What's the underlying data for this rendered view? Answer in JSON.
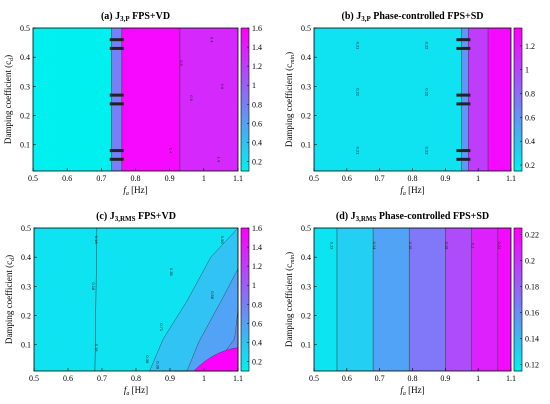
{
  "chart_data": [
    {
      "type": "heatmap",
      "panel": "(a)",
      "title": "J",
      "title_sub": "3,P",
      "title_rest": " FPS+VD",
      "xlabel": "f",
      "xlabel_sub": "a",
      "xlabel_unit": " [Hz]",
      "ylabel": "Damping coefficient (c",
      "ylabel_sub": "d",
      "ylabel_end": ")",
      "xlim": [
        0.5,
        1.1
      ],
      "ylim": [
        0.01,
        0.5
      ],
      "xticks": [
        "0.5",
        "0.6",
        "0.7",
        "0.8",
        "0.9",
        "1",
        "1.1"
      ],
      "yticks": [
        "0.1",
        "0.2",
        "0.3",
        "0.4",
        "0.5"
      ],
      "colorbar": {
        "min": 0.1,
        "max": 1.6,
        "ticks": [
          "0.2",
          "0.4",
          "0.6",
          "0.8",
          "1",
          "1.2",
          "1.4",
          "1.6"
        ]
      },
      "regions": [
        {
          "x": [
            0.5,
            0.73
          ],
          "value": 0.1
        },
        {
          "x": [
            0.73,
            0.76
          ],
          "value": 0.8
        },
        {
          "x": [
            0.76,
            0.93
          ],
          "value": 1.55
        },
        {
          "x": [
            0.93,
            1.1
          ],
          "value": 1.35
        }
      ],
      "contour_labels": [
        "0.4",
        "0.5",
        "0.6",
        "0.9",
        "1.4",
        "1.4"
      ]
    },
    {
      "type": "heatmap",
      "panel": "(b)",
      "title": "J",
      "title_sub": "3,P",
      "title_rest": " Phase-controlled FPS+SD",
      "xlabel": "f",
      "xlabel_sub": "a",
      "xlabel_unit": " [Hz]",
      "ylabel": "Damping coefficient (c",
      "ylabel_sub": "min",
      "ylabel_end": ")",
      "xlim": [
        0.5,
        1.1
      ],
      "ylim": [
        0.01,
        0.5
      ],
      "xticks": [
        "0.5",
        "0.6",
        "0.7",
        "0.8",
        "0.9",
        "1",
        "1.1"
      ],
      "yticks": [
        "0.1",
        "0.2",
        "0.3",
        "0.4",
        "0.5"
      ],
      "colorbar": {
        "min": 0.15,
        "max": 1.35,
        "ticks": [
          "0.2",
          "0.4",
          "0.6",
          "0.8",
          "1",
          "1.2"
        ]
      },
      "regions": [
        {
          "x": [
            0.5,
            0.95
          ],
          "value": 0.22
        },
        {
          "x": [
            0.95,
            0.97
          ],
          "value": 0.6
        },
        {
          "x": [
            0.97,
            1.03
          ],
          "value": 1.05
        },
        {
          "x": [
            1.03,
            1.1
          ],
          "value": 1.3
        }
      ],
      "contour_labels": [
        "0.21",
        "0.21",
        "0.21",
        "0.22",
        "0.22",
        "0.22"
      ]
    },
    {
      "type": "heatmap",
      "panel": "(c)",
      "title": "J",
      "title_sub": "3,RMS",
      "title_rest": " FPS+VD",
      "xlabel": "f",
      "xlabel_sub": "a",
      "xlabel_unit": " [Hz]",
      "ylabel": "Damping coefficient (c",
      "ylabel_sub": "d",
      "ylabel_end": ")",
      "xlim": [
        0.5,
        1.1
      ],
      "ylim": [
        0.01,
        0.5
      ],
      "xticks": [
        "0.5",
        "0.6",
        "0.7",
        "0.8",
        "0.9",
        "1",
        "1.1"
      ],
      "yticks": [
        "0.1",
        "0.2",
        "0.3",
        "0.4",
        "0.5"
      ],
      "colorbar": {
        "min": 0.1,
        "max": 1.6,
        "ticks": [
          "0.2",
          "0.4",
          "0.6",
          "0.8",
          "1",
          "1.2",
          "1.4",
          "1.6"
        ]
      },
      "regions": [
        {
          "x": [
            0.5,
            1.1
          ],
          "value": 0.18
        }
      ],
      "contour_labels": [
        "0.18",
        "0.18",
        "0.18",
        "0.38",
        "0.58",
        "0.58",
        "0.71",
        "0.38",
        "0.38"
      ]
    },
    {
      "type": "heatmap",
      "panel": "(d)",
      "title": "J",
      "title_sub": "3,RMS",
      "title_rest": " Phase-controlled FPS+SD",
      "xlabel": "f",
      "xlabel_sub": "a",
      "xlabel_unit": " [Hz]",
      "ylabel": "Damping coefficient (c",
      "ylabel_sub": "min",
      "ylabel_end": ")",
      "xlim": [
        0.5,
        1.1
      ],
      "ylim": [
        0.01,
        0.5
      ],
      "xticks": [
        "0.5",
        "0.6",
        "0.7",
        "0.8",
        "0.9",
        "1",
        "1.1"
      ],
      "yticks": [
        "0.1",
        "0.2",
        "0.3",
        "0.4",
        "0.5"
      ],
      "colorbar": {
        "min": 0.115,
        "max": 0.225,
        "ticks": [
          "0.12",
          "0.14",
          "0.16",
          "0.18",
          "0.2",
          "0.22"
        ]
      },
      "regions": [
        {
          "x": [
            0.5,
            0.57
          ],
          "value": 0.12
        },
        {
          "x": [
            0.57,
            0.68
          ],
          "value": 0.13
        },
        {
          "x": [
            0.68,
            0.79
          ],
          "value": 0.15
        },
        {
          "x": [
            0.79,
            0.9
          ],
          "value": 0.17
        },
        {
          "x": [
            0.9,
            0.98
          ],
          "value": 0.19
        },
        {
          "x": [
            0.98,
            1.06
          ],
          "value": 0.21
        },
        {
          "x": [
            1.06,
            1.1
          ],
          "value": 0.22
        }
      ],
      "contour_labels": [
        "0.13",
        "0.14",
        "0.16",
        "0.18",
        "0.2",
        "0.22"
      ]
    }
  ]
}
